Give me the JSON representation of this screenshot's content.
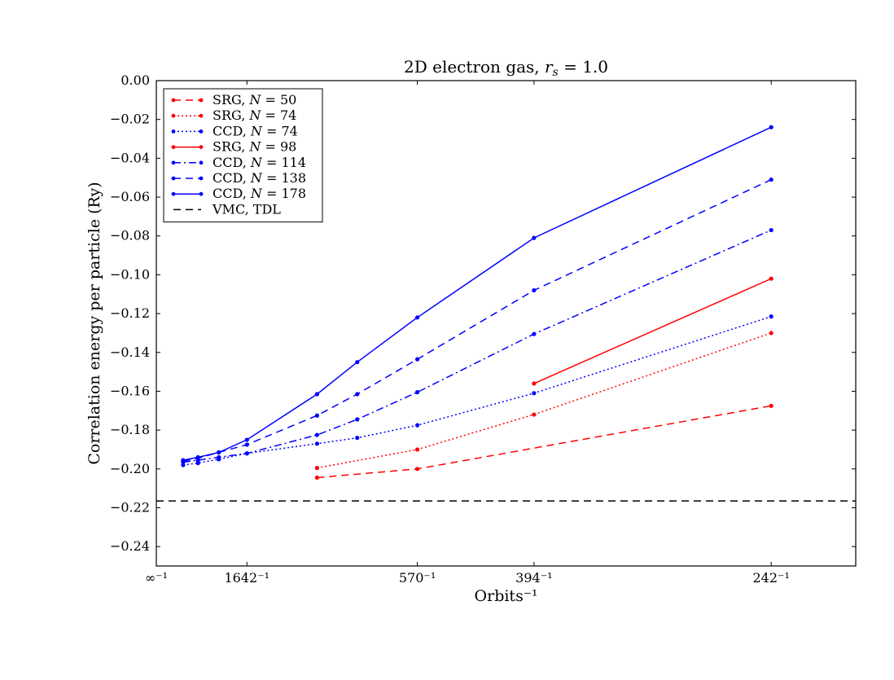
{
  "chart_data": {
    "type": "line",
    "title": "2D electron gas, r_s = 1.0",
    "title_parts": {
      "main": "2D electron gas, ",
      "var": "r",
      "sub": "s",
      "rest": " = 1.0"
    },
    "xlabel": "Orbits⁻¹",
    "ylabel": "Correlation energy per particle (Ry)",
    "xlim": [
      0,
      0.0047
    ],
    "ylim": [
      -0.25,
      0.0
    ],
    "x_scale": "reciprocal of number of orbits",
    "x_ticks": [
      {
        "value": 0,
        "label": "∞⁻¹"
      },
      {
        "value": 0.000609,
        "label": "1642⁻¹"
      },
      {
        "value": 0.001754,
        "label": "570⁻¹"
      },
      {
        "value": 0.002538,
        "label": "394⁻¹"
      },
      {
        "value": 0.004132,
        "label": "242⁻¹"
      }
    ],
    "y_ticks": [
      0.0,
      -0.02,
      -0.04,
      -0.06,
      -0.08,
      -0.1,
      -0.12,
      -0.14,
      -0.16,
      -0.18,
      -0.2,
      -0.22,
      -0.24
    ],
    "y_tick_labels": [
      "0.00",
      "−0.02",
      "−0.04",
      "−0.06",
      "−0.08",
      "−0.10",
      "−0.12",
      "−0.14",
      "−0.16",
      "−0.18",
      "−0.20",
      "−0.22",
      "−0.24"
    ],
    "grid": false,
    "legend_position": "top-left",
    "series": [
      {
        "name": "SRG, N = 50",
        "label_main": "SRG, ",
        "label_var": "N",
        "label_rest": " = 50",
        "color": "#ff0000",
        "style": "dashed",
        "markers": true,
        "x": [
          0.00108,
          0.001754,
          0.004132
        ],
        "y": [
          -0.2045,
          -0.2,
          -0.1675
        ]
      },
      {
        "name": "SRG, N = 74",
        "label_main": "SRG, ",
        "label_var": "N",
        "label_rest": " = 74",
        "color": "#ff0000",
        "style": "dotted",
        "markers": true,
        "x": [
          0.00108,
          0.001754,
          0.002538,
          0.004132
        ],
        "y": [
          -0.1995,
          -0.19,
          -0.172,
          -0.13
        ]
      },
      {
        "name": "CCD, N = 74",
        "label_main": "CCD, ",
        "label_var": "N",
        "label_rest": " = 74",
        "color": "#0000ff",
        "style": "dotted",
        "markers": true,
        "x": [
          0.00018,
          0.00028,
          0.00042,
          0.000609,
          0.00108,
          0.00135,
          0.001754,
          0.002538,
          0.004132
        ],
        "y": [
          -0.198,
          -0.197,
          -0.195,
          -0.192,
          -0.187,
          -0.184,
          -0.1775,
          -0.161,
          -0.1215
        ]
      },
      {
        "name": "SRG, N = 98",
        "label_main": "SRG, ",
        "label_var": "N",
        "label_rest": " = 98",
        "color": "#ff0000",
        "style": "solid",
        "markers": true,
        "x": [
          0.002538,
          0.004132
        ],
        "y": [
          -0.156,
          -0.102
        ]
      },
      {
        "name": "CCD, N = 114",
        "label_main": "CCD, ",
        "label_var": "N",
        "label_rest": " = 114",
        "color": "#0000ff",
        "style": "dashdot",
        "markers": true,
        "x": [
          0.00018,
          0.00028,
          0.00042,
          0.000609,
          0.00108,
          0.00135,
          0.001754,
          0.002538,
          0.004132
        ],
        "y": [
          -0.1965,
          -0.1955,
          -0.194,
          -0.192,
          -0.1825,
          -0.1745,
          -0.1605,
          -0.1305,
          -0.077
        ]
      },
      {
        "name": "CCD, N = 138",
        "label_main": "CCD, ",
        "label_var": "N",
        "label_rest": " = 138",
        "color": "#0000ff",
        "style": "dashed",
        "markers": true,
        "x": [
          0.00018,
          0.00028,
          0.00042,
          0.000609,
          0.00108,
          0.00135,
          0.001754,
          0.002538,
          0.004132
        ],
        "y": [
          -0.196,
          -0.1945,
          -0.1915,
          -0.1875,
          -0.1725,
          -0.1615,
          -0.1435,
          -0.108,
          -0.051
        ]
      },
      {
        "name": "CCD, N = 178",
        "label_main": "CCD, ",
        "label_var": "N",
        "label_rest": " = 178",
        "color": "#0000ff",
        "style": "solid",
        "markers": true,
        "x": [
          0.00018,
          0.00028,
          0.00042,
          0.000609,
          0.00108,
          0.00135,
          0.001754,
          0.002538,
          0.004132
        ],
        "y": [
          -0.1955,
          -0.194,
          -0.1915,
          -0.185,
          -0.1615,
          -0.145,
          -0.122,
          -0.081,
          -0.024
        ]
      },
      {
        "name": "VMC, TDL",
        "label_main": "VMC, TDL",
        "label_var": "",
        "label_rest": "",
        "color": "#000000",
        "style": "dashed",
        "markers": false,
        "hline": -0.2165
      }
    ]
  }
}
